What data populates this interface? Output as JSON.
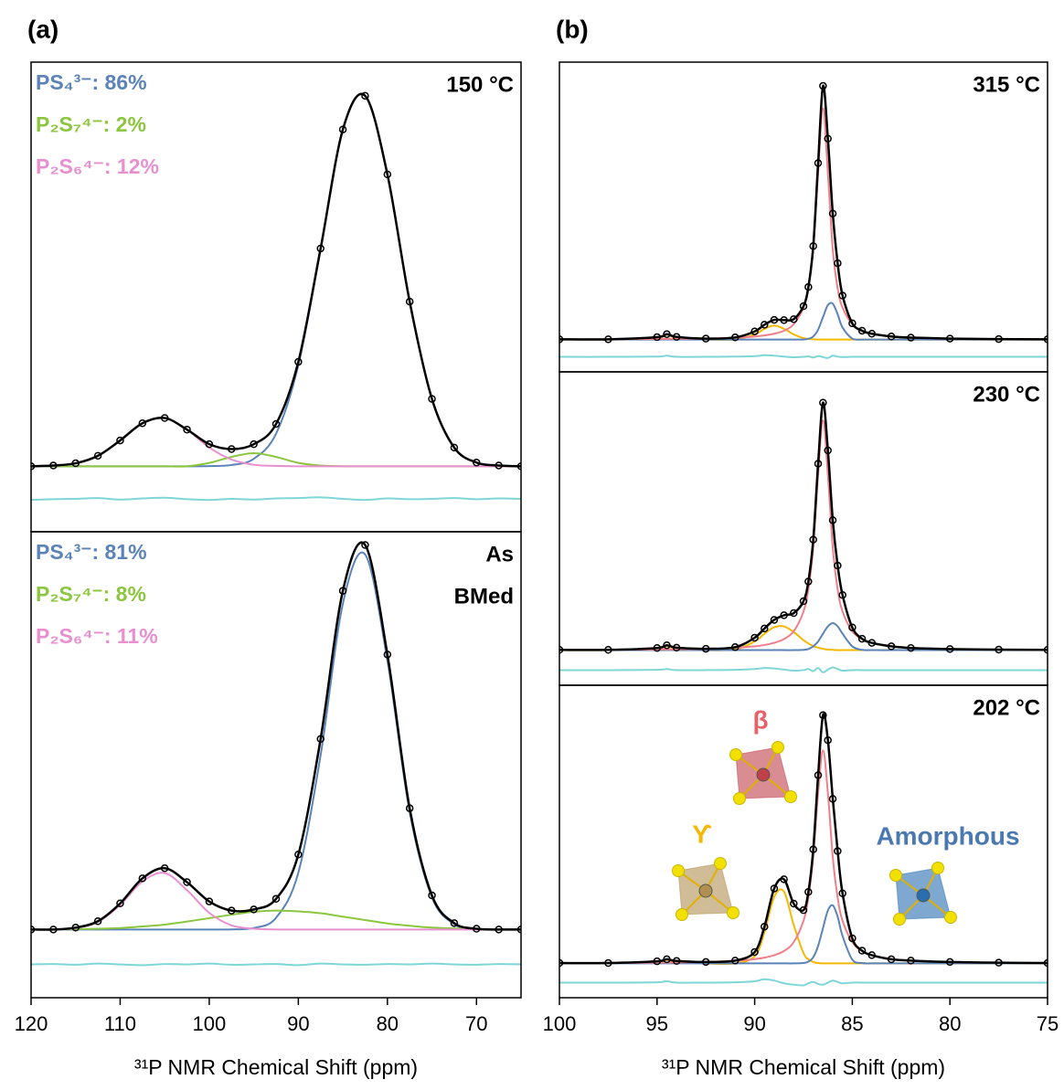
{
  "chart_data": [
    {
      "type": "line",
      "panel": "(a)",
      "label": [
        "150 °C"
      ],
      "annotations": [
        {
          "text": "PS₄³⁻: 86%",
          "color": "#5b83b8"
        },
        {
          "text": "P₂S₇⁴⁻: 2%",
          "color": "#8cc63f"
        },
        {
          "text": "P₂S₆⁴⁻: 12%",
          "color": "#e88fcf"
        }
      ],
      "xlim": [
        120,
        65
      ],
      "ylim": [
        -0.175,
        1.08
      ],
      "x": [
        120,
        117.5,
        115,
        112.5,
        110,
        107.5,
        105,
        102.5,
        100,
        97.5,
        95,
        92.5,
        90,
        87.5,
        85,
        82.5,
        80,
        77.5,
        75,
        72.5,
        70,
        67.5,
        65
      ],
      "series": [
        {
          "color": "#5b83b8",
          "style": "line",
          "values": [
            0,
            0,
            0,
            0,
            0,
            0,
            0,
            0,
            0.0004,
            0.0034,
            0.02,
            0.087,
            0.27,
            0.58,
            0.9,
            0.99,
            0.78,
            0.44,
            0.18,
            0.05,
            0.01,
            0.002,
            0
          ]
        },
        {
          "color": "#8cc63f",
          "style": "line",
          "values": [
            0,
            0,
            0,
            0,
            0,
            0,
            0,
            0,
            0.009,
            0.025,
            0.035,
            0.025,
            0.009,
            0.002,
            0,
            0,
            0,
            0,
            0,
            0,
            0,
            0,
            0
          ]
        },
        {
          "color": "#e88fcf",
          "style": "line",
          "values": [
            0,
            0.0015,
            0.008,
            0.028,
            0.069,
            0.115,
            0.129,
            0.098,
            0.05,
            0.018,
            0.004,
            0.001,
            0,
            0,
            0,
            0,
            0,
            0,
            0,
            0,
            0,
            0,
            0
          ]
        },
        {
          "color": "#7fd6d6",
          "style": "line",
          "values": [
            -0.09,
            -0.088,
            -0.087,
            -0.085,
            -0.089,
            -0.086,
            -0.084,
            -0.088,
            -0.09,
            -0.087,
            -0.089,
            -0.086,
            -0.085,
            -0.083,
            -0.087,
            -0.09,
            -0.086,
            -0.088,
            -0.087,
            -0.085,
            -0.088,
            -0.086,
            -0.087
          ]
        },
        {
          "color": "#000000",
          "style": "line+points",
          "values": [
            0,
            0.002,
            0.008,
            0.028,
            0.069,
            0.115,
            0.129,
            0.098,
            0.059,
            0.046,
            0.059,
            0.113,
            0.279,
            0.582,
            0.9,
            0.99,
            0.78,
            0.44,
            0.18,
            0.05,
            0.01,
            0.002,
            0
          ]
        }
      ]
    },
    {
      "type": "line",
      "label": [
        "As",
        "BMed"
      ],
      "annotations": [
        {
          "text": "PS₄³⁻: 81%",
          "color": "#5b83b8"
        },
        {
          "text": "P₂S₇⁴⁻: 8%",
          "color": "#8cc63f"
        },
        {
          "text": "P₂S₆⁴⁻: 11%",
          "color": "#e88fcf"
        }
      ],
      "xlim": [
        120,
        65
      ],
      "ylim": [
        -0.18,
        1.05
      ],
      "xticks": [
        120,
        110,
        100,
        90,
        80,
        70
      ],
      "xlabel": "³¹P NMR Chemical Shift (ppm)",
      "x": [
        120,
        117.5,
        115,
        112.5,
        110,
        107.5,
        105,
        102.5,
        100,
        97.5,
        95,
        92.5,
        90,
        87.5,
        85,
        82.5,
        80,
        77.5,
        75,
        72.5,
        70,
        67.5,
        65
      ],
      "series": [
        {
          "color": "#5b83b8",
          "style": "line",
          "values": [
            0,
            0,
            0,
            0,
            0,
            0,
            0,
            0,
            0,
            0.0003,
            0.004,
            0.031,
            0.15,
            0.46,
            0.86,
            0.99,
            0.71,
            0.31,
            0.085,
            0.014,
            0.001,
            0,
            0
          ]
        },
        {
          "color": "#8cc63f",
          "style": "line",
          "values": [
            0,
            0,
            0.001,
            0.002,
            0.004,
            0.008,
            0.013,
            0.021,
            0.03,
            0.039,
            0.047,
            0.05,
            0.048,
            0.043,
            0.034,
            0.025,
            0.016,
            0.01,
            0.005,
            0.003,
            0.001,
            0,
            0
          ]
        },
        {
          "color": "#e88fcf",
          "style": "line",
          "values": [
            0,
            0,
            0.004,
            0.02,
            0.065,
            0.127,
            0.149,
            0.104,
            0.044,
            0.011,
            0.002,
            0,
            0,
            0,
            0,
            0,
            0,
            0,
            0,
            0,
            0,
            0,
            0
          ]
        },
        {
          "color": "#7fd6d6",
          "style": "line",
          "values": [
            -0.092,
            -0.091,
            -0.093,
            -0.09,
            -0.092,
            -0.094,
            -0.091,
            -0.092,
            -0.09,
            -0.093,
            -0.092,
            -0.091,
            -0.094,
            -0.09,
            -0.092,
            -0.093,
            -0.091,
            -0.092,
            -0.09,
            -0.092,
            -0.093,
            -0.091,
            -0.092
          ]
        },
        {
          "color": "#000000",
          "style": "line+points",
          "values": [
            0,
            0,
            0.005,
            0.022,
            0.069,
            0.135,
            0.162,
            0.125,
            0.074,
            0.05,
            0.053,
            0.081,
            0.198,
            0.503,
            0.894,
            1.015,
            0.726,
            0.32,
            0.09,
            0.017,
            0.002,
            0,
            0
          ]
        }
      ]
    },
    {
      "type": "line",
      "panel": "(b)",
      "label": [
        "315 °C"
      ],
      "xlim": [
        100,
        75
      ],
      "ylim": [
        -0.14,
        1.2
      ],
      "x": [
        100,
        97.5,
        95,
        94.5,
        94,
        92.5,
        91,
        90,
        89.5,
        89,
        88.5,
        88,
        87.5,
        87.25,
        87,
        86.75,
        86.5,
        86.25,
        86,
        85.75,
        85.5,
        85,
        84.5,
        84,
        83,
        82,
        80,
        77.5,
        75
      ],
      "series": [
        {
          "color": "#f5b800",
          "style": "line",
          "values": [
            0,
            0,
            0.008,
            0.02,
            0.008,
            0,
            0.001,
            0.022,
            0.046,
            0.06,
            0.046,
            0.022,
            0.006,
            0.003,
            0.001,
            0,
            0,
            0,
            0,
            0,
            0,
            0,
            0,
            0,
            0,
            0,
            0,
            0,
            0
          ]
        },
        {
          "color": "#5b83b8",
          "style": "line",
          "values": [
            0,
            0,
            0,
            0,
            0,
            0,
            0,
            0,
            0,
            0,
            0,
            0,
            0,
            0.003,
            0.013,
            0.043,
            0.097,
            0.149,
            0.155,
            0.109,
            0.052,
            0.004,
            0,
            0,
            0,
            0,
            0,
            0,
            0
          ]
        },
        {
          "color": "#f07f8a",
          "style": "line",
          "values": [
            0.0009,
            0.0013,
            0.0022,
            0.0025,
            0.0028,
            0.0044,
            0.0078,
            0.0129,
            0.0175,
            0.025,
            0.038,
            0.066,
            0.138,
            0.221,
            0.39,
            0.72,
            1,
            0.72,
            0.39,
            0.221,
            0.138,
            0.066,
            0.038,
            0.025,
            0.0129,
            0.0078,
            0.0038,
            0.002,
            0.0012
          ]
        },
        {
          "color": "#7fd6d6",
          "style": "line",
          "values": [
            -0.075,
            -0.075,
            -0.074,
            -0.07,
            -0.075,
            -0.075,
            -0.074,
            -0.072,
            -0.068,
            -0.07,
            -0.074,
            -0.077,
            -0.075,
            -0.073,
            -0.078,
            -0.072,
            -0.076,
            -0.08,
            -0.07,
            -0.074,
            -0.076,
            -0.075,
            -0.075,
            -0.075,
            -0.075,
            -0.075,
            -0.075,
            -0.075,
            -0.075
          ]
        },
        {
          "color": "#000000",
          "style": "line+points",
          "values": [
            0.001,
            0.001,
            0.01,
            0.023,
            0.011,
            0.004,
            0.009,
            0.035,
            0.064,
            0.085,
            0.084,
            0.088,
            0.144,
            0.227,
            0.404,
            0.763,
            1.097,
            0.869,
            0.545,
            0.33,
            0.19,
            0.07,
            0.038,
            0.025,
            0.013,
            0.008,
            0.004,
            0.002,
            0.001
          ]
        }
      ]
    },
    {
      "type": "line",
      "label": [
        "230 °C"
      ],
      "xlim": [
        100,
        75
      ],
      "ylim": [
        -0.13,
        1.03
      ],
      "x": [
        100,
        97.5,
        95,
        94.5,
        94,
        92.5,
        91,
        90,
        89.5,
        89,
        88.5,
        88,
        87.5,
        87.25,
        87,
        86.75,
        86.5,
        86.25,
        86,
        85.75,
        85.5,
        85,
        84.5,
        84,
        83,
        82,
        80,
        77.5,
        75
      ],
      "series": [
        {
          "color": "#f5b800",
          "style": "line",
          "values": [
            0,
            0,
            0.006,
            0.015,
            0.006,
            0,
            0.003,
            0.032,
            0.061,
            0.085,
            0.088,
            0.067,
            0.037,
            0.025,
            0.015,
            0.009,
            0.005,
            0.002,
            0.001,
            0,
            0,
            0,
            0,
            0,
            0,
            0,
            0,
            0,
            0
          ]
        },
        {
          "color": "#5b83b8",
          "style": "line",
          "values": [
            0,
            0,
            0,
            0,
            0,
            0,
            0,
            0,
            0,
            0,
            0,
            0,
            0.001,
            0.004,
            0.014,
            0.032,
            0.061,
            0.088,
            0.1,
            0.088,
            0.061,
            0.014,
            0.001,
            0,
            0,
            0,
            0,
            0,
            0
          ]
        },
        {
          "color": "#f07f8a",
          "style": "line",
          "values": [
            0.0009,
            0.0014,
            0.0024,
            0.0027,
            0.003,
            0.0047,
            0.0084,
            0.014,
            0.019,
            0.027,
            0.041,
            0.07,
            0.143,
            0.225,
            0.38,
            0.649,
            0.85,
            0.649,
            0.38,
            0.225,
            0.143,
            0.07,
            0.041,
            0.027,
            0.014,
            0.0084,
            0.0041,
            0.0021,
            0.0013
          ]
        },
        {
          "color": "#7fd6d6",
          "style": "line",
          "values": [
            -0.074,
            -0.074,
            -0.073,
            -0.07,
            -0.074,
            -0.074,
            -0.073,
            -0.07,
            -0.066,
            -0.068,
            -0.072,
            -0.076,
            -0.074,
            -0.07,
            -0.078,
            -0.066,
            -0.082,
            -0.072,
            -0.064,
            -0.07,
            -0.076,
            -0.074,
            -0.074,
            -0.074,
            -0.074,
            -0.074,
            -0.074,
            -0.074,
            -0.074
          ]
        },
        {
          "color": "#000000",
          "style": "line+points",
          "values": [
            0.001,
            0.001,
            0.008,
            0.018,
            0.009,
            0.005,
            0.011,
            0.046,
            0.08,
            0.112,
            0.129,
            0.137,
            0.181,
            0.254,
            0.409,
            0.69,
            0.916,
            0.739,
            0.481,
            0.313,
            0.204,
            0.084,
            0.042,
            0.027,
            0.014,
            0.008,
            0.004,
            0.002,
            0.001
          ]
        }
      ]
    },
    {
      "type": "line",
      "label": [
        "202 °C"
      ],
      "annotations": [
        {
          "text": "β",
          "color": "#e8606a"
        },
        {
          "text": "ϒ",
          "color": "#f5b800"
        },
        {
          "text": "Amorphous",
          "color": "#4a78b0"
        }
      ],
      "xlim": [
        100,
        75
      ],
      "ylim": [
        -0.1,
        0.81
      ],
      "xticks": [
        100,
        95,
        90,
        85,
        80,
        75
      ],
      "xlabel": "³¹P NMR Chemical Shift (ppm)",
      "x": [
        100,
        97.5,
        95,
        94.5,
        94,
        92.5,
        91,
        90,
        89.5,
        89,
        88.5,
        88,
        87.5,
        87.25,
        87,
        86.75,
        86.5,
        86.25,
        86,
        85.75,
        85.5,
        85,
        84.5,
        84,
        83,
        82,
        80,
        77.5,
        75
      ],
      "series": [
        {
          "color": "#f5b800",
          "style": "line",
          "values": [
            0,
            0,
            0.004,
            0.01,
            0.004,
            0,
            0,
            0.021,
            0.09,
            0.194,
            0.209,
            0.112,
            0.03,
            0.012,
            0.004,
            0.001,
            0,
            0,
            0,
            0,
            0,
            0,
            0,
            0,
            0,
            0,
            0,
            0,
            0
          ]
        },
        {
          "color": "#5b83b8",
          "style": "line",
          "values": [
            0,
            0,
            0,
            0,
            0,
            0,
            0,
            0,
            0,
            0,
            0,
            0,
            0.001,
            0.005,
            0.018,
            0.051,
            0.103,
            0.154,
            0.169,
            0.136,
            0.08,
            0.011,
            0.001,
            0,
            0,
            0,
            0,
            0,
            0
          ]
        },
        {
          "color": "#f07f8a",
          "style": "line",
          "values": [
            0.0008,
            0.0013,
            0.0021,
            0.0024,
            0.0027,
            0.0043,
            0.0076,
            0.0124,
            0.0168,
            0.024,
            0.036,
            0.062,
            0.124,
            0.191,
            0.31,
            0.496,
            0.62,
            0.496,
            0.31,
            0.191,
            0.124,
            0.062,
            0.036,
            0.024,
            0.0124,
            0.0076,
            0.0036,
            0.0019,
            0.0012
          ]
        },
        {
          "color": "#7fd6d6",
          "style": "line",
          "values": [
            -0.056,
            -0.056,
            -0.055,
            -0.052,
            -0.056,
            -0.056,
            -0.055,
            -0.052,
            -0.046,
            -0.05,
            -0.058,
            -0.062,
            -0.064,
            -0.058,
            -0.054,
            -0.06,
            -0.062,
            -0.056,
            -0.05,
            -0.054,
            -0.058,
            -0.056,
            -0.056,
            -0.056,
            -0.056,
            -0.056,
            -0.056,
            -0.056,
            -0.056
          ]
        },
        {
          "color": "#000000",
          "style": "line+points",
          "values": [
            0.001,
            0.001,
            0.006,
            0.012,
            0.007,
            0.004,
            0.008,
            0.033,
            0.107,
            0.218,
            0.245,
            0.174,
            0.155,
            0.208,
            0.332,
            0.548,
            0.723,
            0.65,
            0.479,
            0.327,
            0.204,
            0.073,
            0.037,
            0.024,
            0.012,
            0.008,
            0.004,
            0.002,
            0.001
          ]
        }
      ]
    }
  ]
}
